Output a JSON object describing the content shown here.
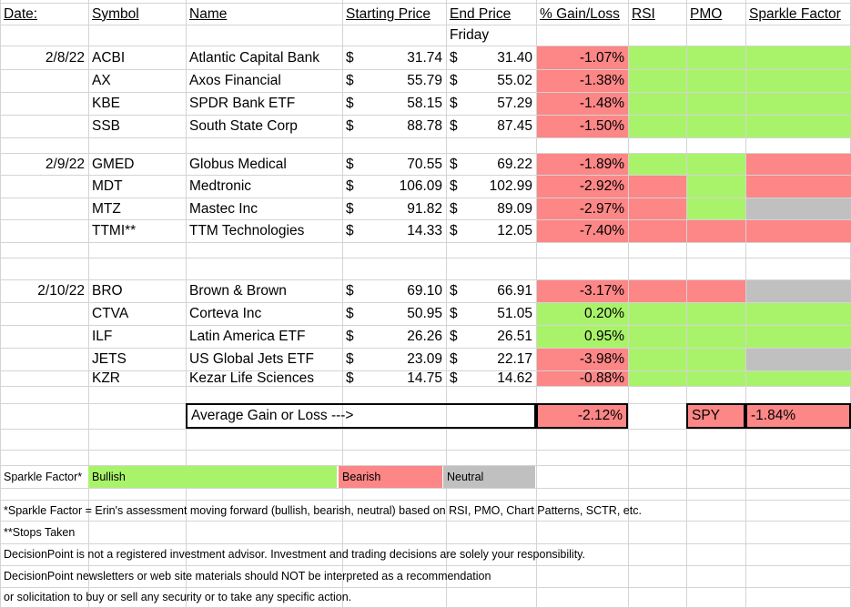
{
  "colors": {
    "bullish": "#a9f36a",
    "bearish": "#fd8686",
    "neutral": "#c0c0c0",
    "gridline": "#d4d4d4"
  },
  "headers": {
    "date": "Date:",
    "symbol": "Symbol",
    "name": "Name",
    "start": "Starting Price",
    "end": "End Price",
    "end_sub": "Friday",
    "gain": "% Gain/Loss",
    "rsi": "RSI",
    "pmo": "PMO",
    "sparkle": "Sparkle Factor"
  },
  "groups": [
    {
      "date": "2/8/22",
      "rows": [
        {
          "symbol": "ACBI",
          "name": "Atlantic Capital Bank",
          "cur1": "$",
          "start": "31.74",
          "cur2": "$",
          "end": "31.40",
          "gain": "-1.07%",
          "gain_color": "red",
          "rsi": "green",
          "pmo": "green",
          "sparkle": "green"
        },
        {
          "symbol": "AX",
          "name": "Axos Financial",
          "cur1": "$",
          "start": "55.79",
          "cur2": "$",
          "end": "55.02",
          "gain": "-1.38%",
          "gain_color": "red",
          "rsi": "green",
          "pmo": "green",
          "sparkle": "green"
        },
        {
          "symbol": "KBE",
          "name": "SPDR Bank ETF",
          "cur1": "$",
          "start": "58.15",
          "cur2": "$",
          "end": "57.29",
          "gain": "-1.48%",
          "gain_color": "red",
          "rsi": "green",
          "pmo": "green",
          "sparkle": "green"
        },
        {
          "symbol": "SSB",
          "name": "South State Corp",
          "cur1": "$",
          "start": "88.78",
          "cur2": "$",
          "end": "87.45",
          "gain": "-1.50%",
          "gain_color": "red",
          "rsi": "green",
          "pmo": "green",
          "sparkle": "green"
        }
      ]
    },
    {
      "date": "2/9/22",
      "rows": [
        {
          "symbol": "GMED",
          "name": "Globus Medical",
          "cur1": "$",
          "start": "70.55",
          "cur2": "$",
          "end": "69.22",
          "gain": "-1.89%",
          "gain_color": "red",
          "rsi": "green",
          "pmo": "green",
          "sparkle": "red"
        },
        {
          "symbol": "MDT",
          "name": "Medtronic",
          "cur1": "$",
          "start": "106.09",
          "cur2": "$",
          "end": "102.99",
          "gain": "-2.92%",
          "gain_color": "red",
          "rsi": "red",
          "pmo": "green",
          "sparkle": "red"
        },
        {
          "symbol": "MTZ",
          "name": "Mastec Inc",
          "cur1": "$",
          "start": "91.82",
          "cur2": "$",
          "end": "89.09",
          "gain": "-2.97%",
          "gain_color": "red",
          "rsi": "red",
          "pmo": "green",
          "sparkle": "grey"
        },
        {
          "symbol": "TTMI**",
          "name": "TTM Technologies",
          "cur1": "$",
          "start": "14.33",
          "cur2": "$",
          "end": "12.05",
          "gain": "-7.40%",
          "gain_color": "red",
          "rsi": "red",
          "pmo": "red",
          "sparkle": "red"
        }
      ]
    },
    {
      "date": "2/10/22",
      "rows": [
        {
          "symbol": "BRO",
          "name": "Brown & Brown",
          "cur1": "$",
          "start": "69.10",
          "cur2": "$",
          "end": "66.91",
          "gain": "-3.17%",
          "gain_color": "red",
          "rsi": "red",
          "pmo": "red",
          "sparkle": "grey"
        },
        {
          "symbol": "CTVA",
          "name": "Corteva Inc",
          "cur1": "$",
          "start": "50.95",
          "cur2": "$",
          "end": "51.05",
          "gain": "0.20%",
          "gain_color": "green",
          "rsi": "green",
          "pmo": "green",
          "sparkle": "green"
        },
        {
          "symbol": "ILF",
          "name": "Latin America ETF",
          "cur1": "$",
          "start": "26.26",
          "cur2": "$",
          "end": "26.51",
          "gain": "0.95%",
          "gain_color": "green",
          "rsi": "green",
          "pmo": "green",
          "sparkle": "green"
        },
        {
          "symbol": "JETS",
          "name": "US Global Jets ETF",
          "cur1": "$",
          "start": "23.09",
          "cur2": "$",
          "end": "22.17",
          "gain": "-3.98%",
          "gain_color": "red",
          "rsi": "green",
          "pmo": "green",
          "sparkle": "grey"
        },
        {
          "symbol": "KZR",
          "name": "Kezar Life Sciences",
          "cur1": "$",
          "start": "14.75",
          "cur2": "$",
          "end": "14.62",
          "gain": "-0.88%",
          "gain_color": "red",
          "rsi": "green",
          "pmo": "green",
          "sparkle": "green"
        }
      ]
    }
  ],
  "summary": {
    "avg_label": "Average Gain or Loss --->",
    "avg_value": "-2.12%",
    "spy_label": "SPY",
    "spy_value": "-1.84%"
  },
  "legend": {
    "title": "Sparkle Factor*",
    "bullish": "Bullish",
    "bearish": "Bearish",
    "neutral": "Neutral"
  },
  "notes": {
    "sparkle_def": "*Sparkle Factor = Erin's assessment moving forward (bullish, bearish, neutral) based on RSI, PMO, Chart Patterns, SCTR, etc.",
    "stops": "**Stops Taken",
    "disclaimer1": "DecisionPoint is not a registered investment advisor. Investment and trading decisions are solely your responsibility.",
    "disclaimer2": "DecisionPoint newsletters or web site materials should NOT be interpreted as a recommendation",
    "disclaimer3": "or solicitation to buy or sell any security or to take any specific action."
  }
}
